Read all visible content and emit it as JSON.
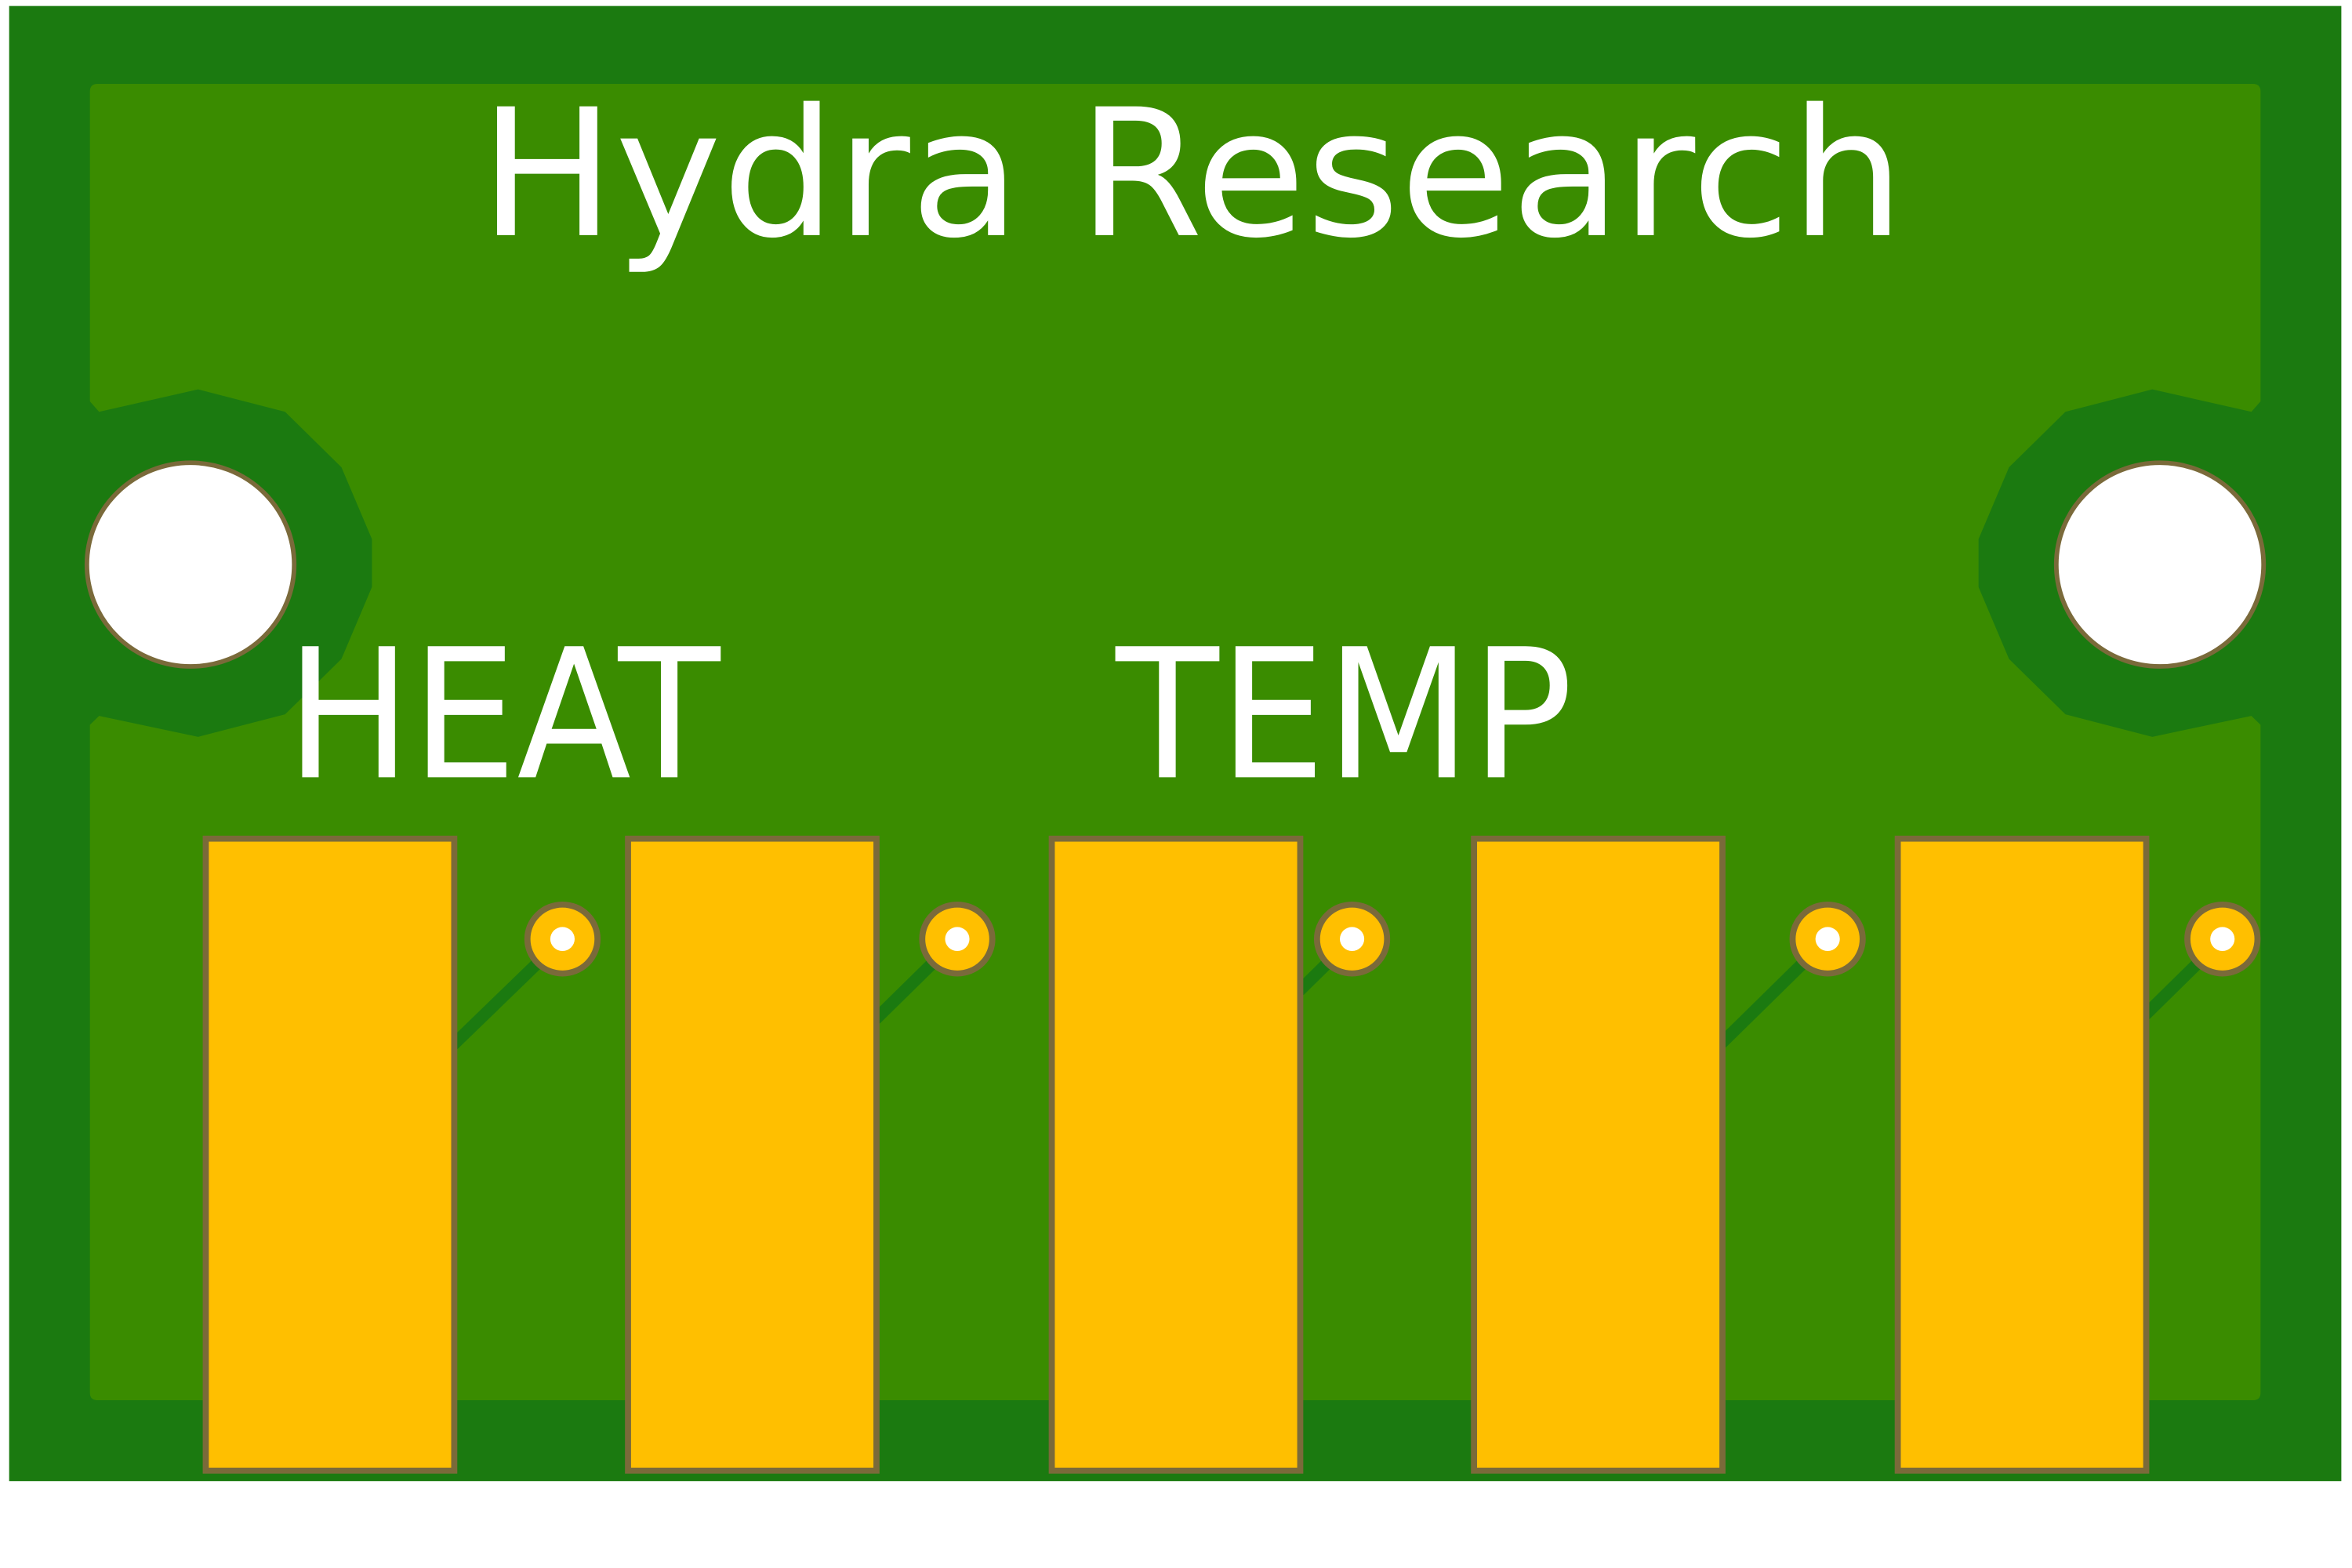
{
  "board": {
    "title": "Hydra Research",
    "pad_labels": [
      "HEAT",
      "TEMP"
    ],
    "pad_count": 5,
    "via_count": 5,
    "mounting_hole_count": 2
  },
  "colors": {
    "background": "#ffffff",
    "board_outer": "#1b7a10",
    "copper_fill": "#3a8c00",
    "trace": "#1b7a10",
    "pad_gold": "#ffbf00",
    "pad_outline": "#7a6a3a",
    "hole": "#ffffff",
    "silkscreen": "#ffffff"
  }
}
